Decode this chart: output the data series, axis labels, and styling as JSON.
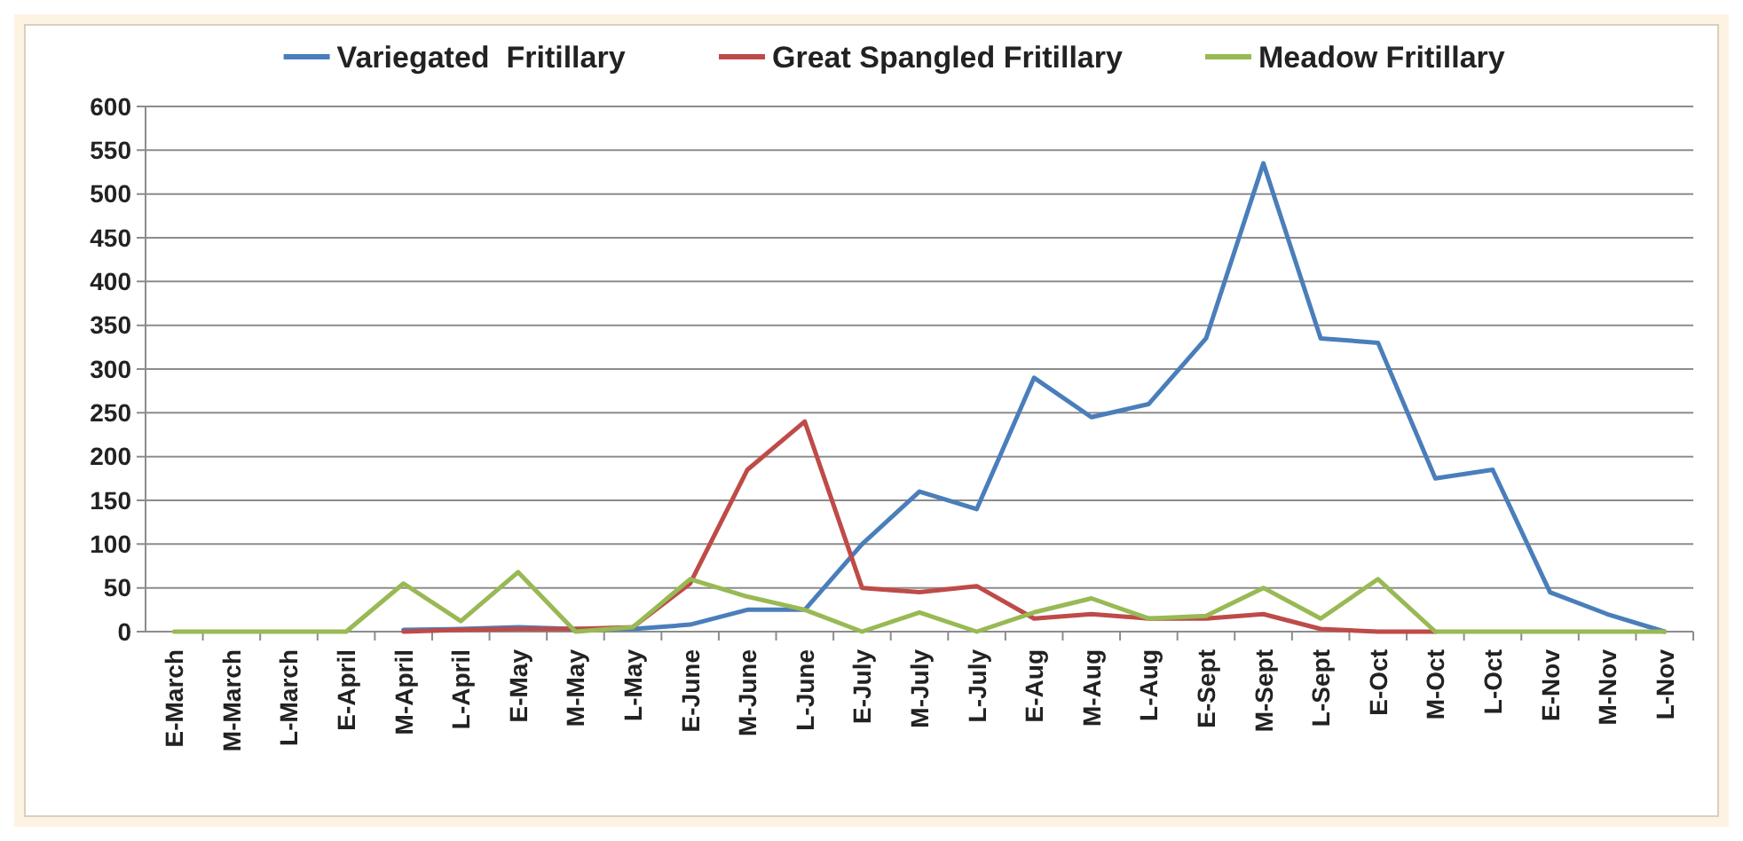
{
  "chart_data": {
    "type": "line",
    "categories": [
      "E-March",
      "M-March",
      "L-March",
      "E-April",
      "M-April",
      "L-April",
      "E-May",
      "M-May",
      "L-May",
      "E-June",
      "M-June",
      "L-June",
      "E-July",
      "M-July",
      "L-July",
      "E-Aug",
      "M-Aug",
      "L-Aug",
      "E-Sept",
      "M-Sept",
      "L-Sept",
      "E-Oct",
      "M-Oct",
      "L-Oct",
      "E-Nov",
      "M-Nov",
      "L-Nov"
    ],
    "series": [
      {
        "name": "Variegated  Fritillary",
        "color": "#4a7ebb",
        "values": [
          null,
          null,
          null,
          null,
          2,
          3,
          5,
          3,
          3,
          8,
          25,
          25,
          100,
          160,
          140,
          290,
          245,
          260,
          335,
          535,
          335,
          330,
          175,
          185,
          45,
          20,
          0
        ]
      },
      {
        "name": "Great Spangled Fritillary",
        "color": "#be4b48",
        "values": [
          null,
          null,
          null,
          null,
          0,
          2,
          3,
          3,
          5,
          55,
          185,
          240,
          50,
          45,
          52,
          15,
          20,
          15,
          15,
          20,
          3,
          0,
          0,
          null,
          null,
          null,
          null
        ]
      },
      {
        "name": "Meadow Fritillary",
        "color": "#98b954",
        "values": [
          0,
          0,
          0,
          0,
          55,
          12,
          68,
          0,
          5,
          60,
          40,
          25,
          0,
          22,
          0,
          22,
          38,
          15,
          18,
          50,
          15,
          60,
          0,
          0,
          0,
          0,
          0
        ]
      }
    ],
    "ylim": [
      0,
      600
    ],
    "yticks": [
      0,
      50,
      100,
      150,
      200,
      250,
      300,
      350,
      400,
      450,
      500,
      550,
      600
    ],
    "grid": "y",
    "legend": "top",
    "marker": "none",
    "line_style": "solid"
  }
}
